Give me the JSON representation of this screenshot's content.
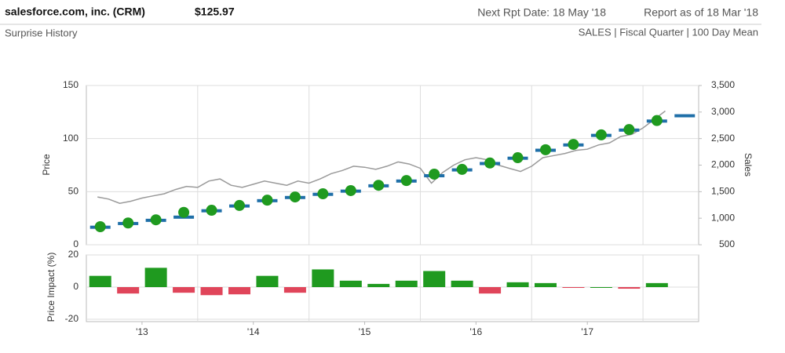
{
  "header": {
    "company": "salesforce.com, inc. (CRM)",
    "price": "$125.97",
    "next_report": "Next Rpt Date: 18 May '18",
    "report_date": "Report as of 18 Mar '18",
    "subtitle": "Surprise History",
    "settings": "SALES | Fiscal Quarter | 100 Day Mean"
  },
  "chart_data": [
    {
      "type": "line",
      "ylabel": "Price",
      "y2label": "Sales",
      "xlim": [
        2013,
        2018.5
      ],
      "xgrid": [
        2014,
        2015,
        2016,
        2017,
        2018
      ],
      "ylim": [
        0,
        150
      ],
      "yticks": [
        0,
        50,
        100,
        150
      ],
      "y2lim": [
        500,
        3500
      ],
      "y2ticks": [
        {
          "value": 500,
          "label": "500"
        },
        {
          "value": 1000,
          "label": "1,000"
        },
        {
          "value": 1500,
          "label": "1,500"
        },
        {
          "value": 2000,
          "label": "2,000"
        },
        {
          "value": 2500,
          "label": "2,500"
        },
        {
          "value": 3000,
          "label": "3,000"
        },
        {
          "value": 3500,
          "label": "3,500"
        }
      ],
      "grid": true,
      "x": [
        2013.125,
        2013.375,
        2013.625,
        2013.875,
        2014.125,
        2014.375,
        2014.625,
        2014.875,
        2015.125,
        2015.375,
        2015.625,
        2015.875,
        2016.125,
        2016.375,
        2016.625,
        2016.875,
        2017.125,
        2017.375,
        2017.625,
        2017.875,
        2018.125,
        2018.375
      ],
      "series": [
        {
          "color": "#9a9a9a",
          "marker": "line",
          "x": [
            2013.1,
            2013.2,
            2013.3,
            2013.4,
            2013.5,
            2013.6,
            2013.7,
            2013.8,
            2013.9,
            2014.0,
            2014.1,
            2014.2,
            2014.3,
            2014.4,
            2014.5,
            2014.6,
            2014.7,
            2014.8,
            2014.9,
            2015.0,
            2015.1,
            2015.2,
            2015.3,
            2015.4,
            2015.5,
            2015.6,
            2015.7,
            2015.8,
            2015.9,
            2016.0,
            2016.1,
            2016.2,
            2016.3,
            2016.4,
            2016.5,
            2016.6,
            2016.7,
            2016.8,
            2016.9,
            2017.0,
            2017.1,
            2017.2,
            2017.3,
            2017.4,
            2017.5,
            2017.6,
            2017.7,
            2017.8,
            2017.9,
            2018.0,
            2018.1,
            2018.2
          ],
          "values": [
            45,
            43,
            39,
            41,
            44,
            46,
            48,
            52,
            55,
            54,
            60,
            62,
            56,
            54,
            57,
            60,
            58,
            56,
            60,
            58,
            62,
            67,
            70,
            74,
            73,
            71,
            74,
            78,
            76,
            72,
            58,
            68,
            75,
            80,
            82,
            80,
            75,
            72,
            69,
            74,
            82,
            84,
            86,
            89,
            90,
            94,
            96,
            102,
            104,
            110,
            118,
            126
          ]
        },
        {
          "color": "#1f6fa8",
          "marker": "dash",
          "axis": "y2",
          "values": [
            830,
            900,
            960,
            1020,
            1140,
            1230,
            1330,
            1390,
            1450,
            1510,
            1610,
            1700,
            1800,
            1910,
            2030,
            2130,
            2280,
            2380,
            2560,
            2660,
            2830,
            2930
          ]
        },
        {
          "color": "#1f9a1f",
          "marker": "circle",
          "axis": "y2",
          "values": [
            840,
            910,
            970,
            1110,
            1150,
            1240,
            1340,
            1400,
            1460,
            1520,
            1620,
            1710,
            1830,
            1920,
            2040,
            2140,
            2290,
            2390,
            2570,
            2670,
            2840,
            null
          ]
        }
      ]
    },
    {
      "type": "bar",
      "ylabel": "Price Impact (%)",
      "xlim": [
        2013,
        2018.5
      ],
      "xgrid": [
        2014,
        2015,
        2016,
        2017,
        2018
      ],
      "xticks": [
        {
          "value": 2013.5,
          "label": "'13"
        },
        {
          "value": 2014.5,
          "label": "'14"
        },
        {
          "value": 2015.5,
          "label": "'15"
        },
        {
          "value": 2016.5,
          "label": "'16"
        },
        {
          "value": 2017.5,
          "label": "'17"
        }
      ],
      "ylim": [
        -20,
        20
      ],
      "yticks": [
        -20,
        0,
        20
      ],
      "positive_color": "#1f9a1f",
      "negative_color": "#e0455a",
      "x": [
        2013.125,
        2013.375,
        2013.625,
        2013.875,
        2014.125,
        2014.375,
        2014.625,
        2014.875,
        2015.125,
        2015.375,
        2015.625,
        2015.875,
        2016.125,
        2016.375,
        2016.625,
        2016.875,
        2017.125,
        2017.375,
        2017.625,
        2017.875,
        2018.125,
        2018.375
      ],
      "values": [
        7,
        -4,
        12,
        -3.5,
        -5,
        -4.5,
        7,
        -3.5,
        11,
        4,
        2,
        4,
        10,
        4,
        -4,
        3,
        2.5,
        -0.5,
        0,
        -1,
        2.5,
        null
      ]
    }
  ]
}
